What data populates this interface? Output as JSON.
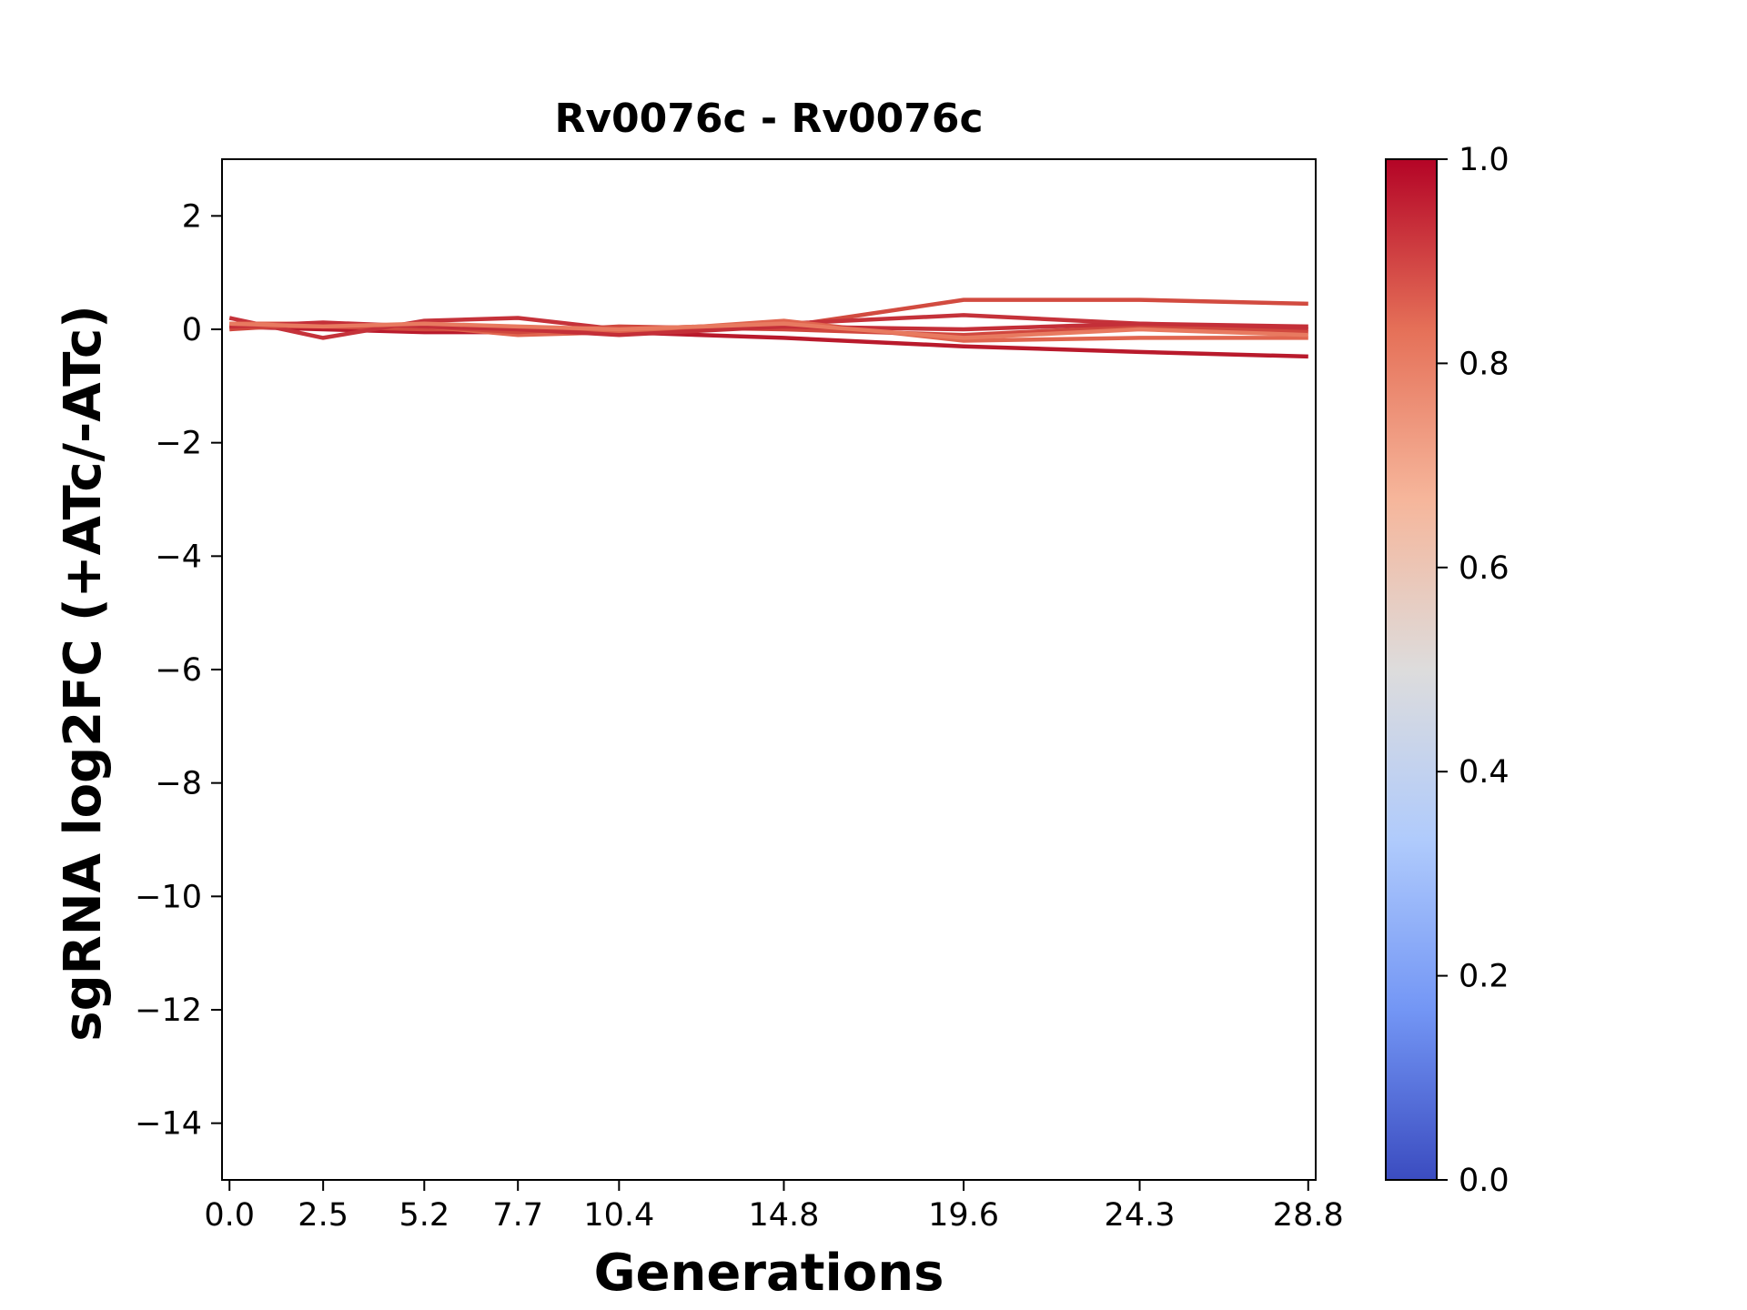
{
  "chart_data": {
    "type": "line",
    "title": "Rv0076c - Rv0076c",
    "xlabel": "Generations",
    "ylabel": "sgRNA log2FC (+ATc/-ATc)",
    "x_ticks": [
      "0.0",
      "2.5",
      "5.2",
      "7.7",
      "10.4",
      "14.8",
      "19.6",
      "24.3",
      "28.8"
    ],
    "y_ticks": [
      "2",
      "0",
      "−2",
      "−4",
      "−6",
      "−8",
      "−10",
      "−12",
      "−14"
    ],
    "ylim": [
      -15,
      3
    ],
    "xlim": [
      -0.2,
      29.0
    ],
    "grid": false,
    "colorbar": {
      "ticks": [
        "0.0",
        "0.2",
        "0.4",
        "0.6",
        "0.8",
        "1.0"
      ],
      "range": [
        0,
        1
      ],
      "colormap": "coolwarm",
      "colors": [
        "#3b4cc0",
        "#7396f5",
        "#b0cbfc",
        "#dddcdc",
        "#f6b69b",
        "#e57058",
        "#b40426"
      ]
    },
    "series": [
      {
        "color": "#b91a2c",
        "x": [
          0,
          2.5,
          5.2,
          7.7,
          10.4,
          14.8,
          19.6,
          24.3,
          28.8
        ],
        "y": [
          0.05,
          0.0,
          -0.05,
          -0.05,
          -0.05,
          -0.15,
          -0.3,
          -0.4,
          -0.48
        ]
      },
      {
        "color": "#d24b40",
        "x": [
          0,
          2.5,
          5.2,
          7.7,
          10.4,
          14.8,
          19.6,
          24.3,
          28.8
        ],
        "y": [
          0.05,
          0.05,
          0.0,
          0.0,
          0.0,
          0.05,
          0.52,
          0.52,
          0.45
        ]
      },
      {
        "color": "#c5323a",
        "x": [
          0,
          2.5,
          5.2,
          7.7,
          10.4,
          14.8,
          19.6,
          24.3,
          28.8
        ],
        "y": [
          0.2,
          -0.15,
          0.15,
          0.2,
          0.0,
          0.1,
          0.25,
          0.1,
          0.0
        ]
      },
      {
        "color": "#e0654f",
        "x": [
          0,
          2.5,
          5.2,
          7.7,
          10.4,
          14.8,
          19.6,
          24.3,
          28.8
        ],
        "y": [
          0.1,
          0.1,
          0.05,
          -0.1,
          -0.05,
          0.15,
          -0.2,
          -0.15,
          -0.15
        ]
      },
      {
        "color": "#d0473e",
        "x": [
          0,
          2.5,
          5.2,
          7.7,
          10.4,
          14.8,
          19.6,
          24.3,
          28.8
        ],
        "y": [
          0.0,
          0.1,
          0.05,
          -0.05,
          0.05,
          0.0,
          -0.1,
          0.05,
          -0.05
        ]
      },
      {
        "color": "#c42f38",
        "x": [
          0,
          2.5,
          5.2,
          7.7,
          10.4,
          14.8,
          19.6,
          24.3,
          28.8
        ],
        "y": [
          0.05,
          0.12,
          0.05,
          0.0,
          -0.1,
          0.05,
          0.0,
          0.1,
          0.05
        ]
      },
      {
        "color": "#e87a60",
        "x": [
          0,
          2.5,
          5.2,
          7.7,
          10.4,
          14.8,
          19.6,
          24.3,
          28.8
        ],
        "y": [
          0.1,
          0.05,
          0.1,
          0.05,
          0.0,
          0.1,
          -0.15,
          0.0,
          -0.1
        ]
      }
    ]
  }
}
